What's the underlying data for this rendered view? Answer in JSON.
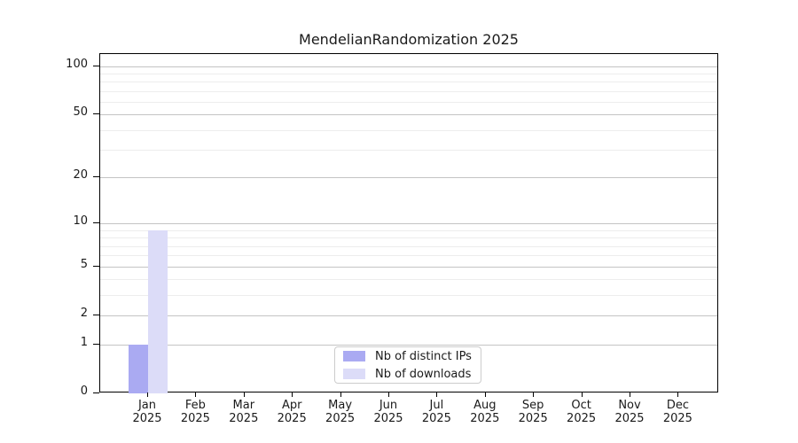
{
  "title": "MendelianRandomization 2025",
  "legend": {
    "items": [
      {
        "label": "Nb of distinct IPs",
        "color": "#aaaaf2"
      },
      {
        "label": "Nb of downloads",
        "color": "#dcdcf8"
      }
    ]
  },
  "chart_data": {
    "type": "bar",
    "title": "MendelianRandomization 2025",
    "categories": [
      "Jan 2025",
      "Feb 2025",
      "Mar 2025",
      "Apr 2025",
      "May 2025",
      "Jun 2025",
      "Jul 2025",
      "Aug 2025",
      "Sep 2025",
      "Oct 2025",
      "Nov 2025",
      "Dec 2025"
    ],
    "series": [
      {
        "name": "Nb of distinct IPs",
        "color": "#aaaaf2",
        "values": [
          1,
          0,
          0,
          0,
          0,
          0,
          0,
          0,
          0,
          0,
          0,
          0
        ]
      },
      {
        "name": "Nb of downloads",
        "color": "#dcdcf8",
        "values": [
          9,
          0,
          0,
          0,
          0,
          0,
          0,
          0,
          0,
          0,
          0,
          0
        ]
      }
    ],
    "xlabel": "",
    "ylabel": "",
    "yscale": "log1p",
    "y_major_ticks": [
      0,
      1,
      2,
      5,
      10,
      20,
      50,
      100
    ],
    "y_minor_ticks": [
      3,
      4,
      6,
      7,
      8,
      9,
      30,
      40,
      60,
      70,
      80,
      90
    ],
    "ylim": [
      0,
      120
    ],
    "grid": "horizontal",
    "legend_position": "inside-bottom-center"
  }
}
